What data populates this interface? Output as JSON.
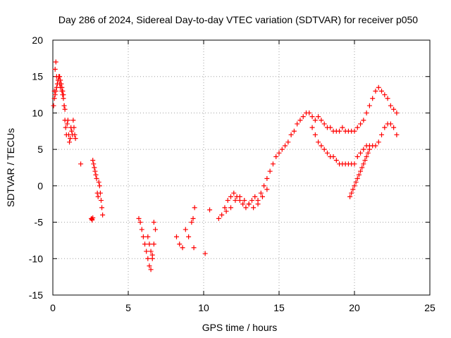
{
  "chart_data": {
    "type": "scatter",
    "title": "Day 286 of 2024, Sidereal Day-to-day VTEC variation (SDTVAR) for receiver p050",
    "xlabel": "GPS time / hours",
    "ylabel": "SDTVAR / TECUs",
    "xlim": [
      0,
      25
    ],
    "ylim": [
      -15,
      20
    ],
    "x_ticks": [
      0,
      5,
      10,
      15,
      20,
      25
    ],
    "y_ticks": [
      -15,
      -10,
      -5,
      0,
      5,
      10,
      15,
      20
    ],
    "grid": true,
    "legend": "none",
    "marker": "plus",
    "color": "#ff0000",
    "series": [
      {
        "x": [
          0.05,
          0.1,
          0.15,
          0.2,
          0.25,
          0.3,
          0.35,
          0.4,
          0.45,
          0.5,
          0.55,
          0.6,
          0.65,
          0.7,
          0.75,
          0.8,
          0.85,
          0.9,
          0.95,
          1.0,
          1.05,
          1.1,
          1.15,
          1.2,
          1.25,
          1.3,
          1.35,
          1.4,
          1.45,
          1.5,
          0.1,
          0.15,
          0.2,
          0.25,
          0.3,
          0.35,
          0.4,
          0.45,
          0.5,
          0.55,
          0.6,
          0.65,
          0.7,
          0.75,
          0.8,
          1.85,
          2.55,
          2.6,
          2.65,
          2.7,
          2.75,
          2.8,
          2.85,
          2.9,
          2.95,
          3.0,
          3.05,
          3.1,
          3.15,
          3.2,
          3.25,
          3.3,
          2.6,
          2.65,
          5.7,
          5.8,
          5.9,
          6.0,
          6.1,
          6.2,
          6.3,
          6.4,
          6.5,
          6.6,
          6.7,
          6.8,
          6.3,
          6.4,
          6.5,
          6.6,
          6.7,
          8.2,
          8.4,
          8.6,
          8.8,
          9.0,
          9.2,
          9.3,
          9.4,
          9.35,
          10.1,
          10.4,
          11.0,
          11.2,
          11.4,
          11.6,
          11.8,
          12.0,
          12.2,
          12.4,
          12.6,
          12.8,
          13.0,
          13.2,
          13.4,
          13.6,
          13.8,
          14.0,
          14.2,
          14.4,
          14.6,
          14.8,
          15.0,
          15.2,
          15.4,
          15.6,
          15.8,
          16.0,
          16.2,
          16.4,
          16.6,
          16.8,
          17.0,
          17.2,
          17.4,
          17.6,
          17.8,
          18.0,
          18.2,
          18.4,
          18.6,
          18.8,
          19.0,
          19.2,
          19.4,
          19.6,
          19.8,
          20.0,
          20.2,
          20.4,
          20.6,
          20.8,
          21.0,
          21.2,
          21.4,
          21.6,
          21.8,
          22.0,
          22.2,
          22.4,
          22.6,
          22.8,
          17.2,
          17.4,
          17.6,
          17.8,
          18.0,
          18.2,
          18.4,
          18.6,
          18.8,
          19.0,
          19.2,
          19.4,
          19.6,
          19.8,
          20.0,
          20.2,
          20.4,
          20.6,
          20.8,
          21.0,
          21.2,
          21.4,
          21.6,
          21.8,
          22.0,
          22.2,
          22.4,
          22.6,
          22.8,
          19.7,
          19.8,
          19.9,
          20.0,
          20.1,
          20.2,
          20.3,
          20.4,
          20.5,
          20.6,
          20.7,
          20.8,
          20.9,
          21.0,
          11.5,
          11.8,
          12.1,
          12.4,
          12.7,
          13.0,
          13.3,
          13.6,
          13.9,
          14.2
        ],
        "y": [
          11,
          13,
          16,
          17,
          15,
          14,
          14.5,
          15,
          14,
          13.5,
          14,
          13,
          12.5,
          12,
          11,
          9,
          8,
          7,
          8.5,
          9,
          7,
          6,
          6.5,
          8,
          7.5,
          7,
          9,
          8,
          7,
          6.5,
          12,
          12.5,
          13,
          13.5,
          14,
          14.5,
          15,
          15,
          14.5,
          14,
          13.5,
          13,
          12.5,
          11,
          10.5,
          3,
          -4.5,
          -4.7,
          3.5,
          3,
          2.5,
          2,
          1.5,
          1,
          -1,
          -1.5,
          0.5,
          0,
          -1,
          -2,
          -3,
          -4,
          -4.6,
          -4.4,
          -4.5,
          -5,
          -6,
          -7,
          -8,
          -9,
          -10,
          -11,
          -11.5,
          -10,
          -8,
          -6,
          -7,
          -8,
          -9,
          -9.5,
          -5,
          -7,
          -8,
          -8.5,
          -6,
          -7,
          -5,
          -4.5,
          -3,
          -8.5,
          -9.3,
          -3.3,
          -4.5,
          -4,
          -3,
          -2,
          -1.5,
          -1,
          -1.5,
          -2,
          -2.5,
          -3,
          -2.5,
          -2,
          -1.5,
          -2,
          -1,
          0,
          1,
          2,
          3,
          4,
          4.5,
          5,
          5.5,
          6,
          7,
          7.5,
          8.5,
          9,
          9.5,
          10,
          10,
          9.5,
          9,
          9.5,
          9,
          8.5,
          8,
          8,
          7.5,
          7.5,
          7.5,
          8,
          7.5,
          7.5,
          7.5,
          7.5,
          8,
          8.5,
          9,
          10,
          11,
          12,
          13,
          13.5,
          13,
          12.5,
          12,
          11,
          10.5,
          10,
          8,
          7,
          6,
          5.5,
          5,
          4.5,
          4,
          4,
          3.5,
          3,
          3,
          3,
          3,
          3,
          3,
          4,
          4.5,
          5,
          5.5,
          5.5,
          5.5,
          5.5,
          6,
          7,
          8,
          8.5,
          8.5,
          8,
          7,
          -1.5,
          -1,
          -0.5,
          0,
          0.5,
          1,
          1.5,
          2,
          2.5,
          3,
          3.5,
          4,
          4.5,
          5,
          -3.5,
          -3,
          -2,
          -1.5,
          -2,
          -2.5,
          -3,
          -2.5,
          -1.5,
          -0.5
        ]
      }
    ]
  }
}
